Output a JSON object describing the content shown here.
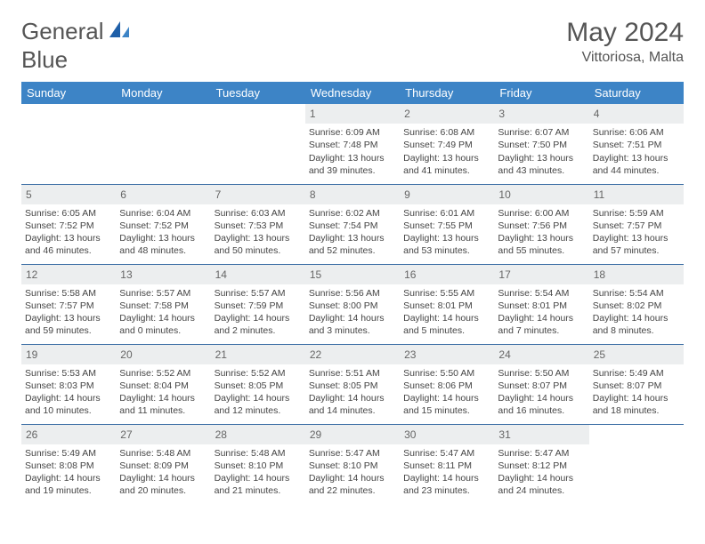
{
  "logo": {
    "text1": "General",
    "text2": "Blue"
  },
  "title": "May 2024",
  "subtitle": "Vittoriosa, Malta",
  "colors": {
    "header_bg": "#3d84c6",
    "header_text": "#ffffff",
    "daynum_bg": "#eceeef",
    "border": "#3d6fa5",
    "body_text": "#444444",
    "title_text": "#555555"
  },
  "weekdays": [
    "Sunday",
    "Monday",
    "Tuesday",
    "Wednesday",
    "Thursday",
    "Friday",
    "Saturday"
  ],
  "weeks": [
    [
      {},
      {},
      {},
      {
        "day": "1",
        "sunrise": "Sunrise: 6:09 AM",
        "sunset": "Sunset: 7:48 PM",
        "daylight": "Daylight: 13 hours and 39 minutes."
      },
      {
        "day": "2",
        "sunrise": "Sunrise: 6:08 AM",
        "sunset": "Sunset: 7:49 PM",
        "daylight": "Daylight: 13 hours and 41 minutes."
      },
      {
        "day": "3",
        "sunrise": "Sunrise: 6:07 AM",
        "sunset": "Sunset: 7:50 PM",
        "daylight": "Daylight: 13 hours and 43 minutes."
      },
      {
        "day": "4",
        "sunrise": "Sunrise: 6:06 AM",
        "sunset": "Sunset: 7:51 PM",
        "daylight": "Daylight: 13 hours and 44 minutes."
      }
    ],
    [
      {
        "day": "5",
        "sunrise": "Sunrise: 6:05 AM",
        "sunset": "Sunset: 7:52 PM",
        "daylight": "Daylight: 13 hours and 46 minutes."
      },
      {
        "day": "6",
        "sunrise": "Sunrise: 6:04 AM",
        "sunset": "Sunset: 7:52 PM",
        "daylight": "Daylight: 13 hours and 48 minutes."
      },
      {
        "day": "7",
        "sunrise": "Sunrise: 6:03 AM",
        "sunset": "Sunset: 7:53 PM",
        "daylight": "Daylight: 13 hours and 50 minutes."
      },
      {
        "day": "8",
        "sunrise": "Sunrise: 6:02 AM",
        "sunset": "Sunset: 7:54 PM",
        "daylight": "Daylight: 13 hours and 52 minutes."
      },
      {
        "day": "9",
        "sunrise": "Sunrise: 6:01 AM",
        "sunset": "Sunset: 7:55 PM",
        "daylight": "Daylight: 13 hours and 53 minutes."
      },
      {
        "day": "10",
        "sunrise": "Sunrise: 6:00 AM",
        "sunset": "Sunset: 7:56 PM",
        "daylight": "Daylight: 13 hours and 55 minutes."
      },
      {
        "day": "11",
        "sunrise": "Sunrise: 5:59 AM",
        "sunset": "Sunset: 7:57 PM",
        "daylight": "Daylight: 13 hours and 57 minutes."
      }
    ],
    [
      {
        "day": "12",
        "sunrise": "Sunrise: 5:58 AM",
        "sunset": "Sunset: 7:57 PM",
        "daylight": "Daylight: 13 hours and 59 minutes."
      },
      {
        "day": "13",
        "sunrise": "Sunrise: 5:57 AM",
        "sunset": "Sunset: 7:58 PM",
        "daylight": "Daylight: 14 hours and 0 minutes."
      },
      {
        "day": "14",
        "sunrise": "Sunrise: 5:57 AM",
        "sunset": "Sunset: 7:59 PM",
        "daylight": "Daylight: 14 hours and 2 minutes."
      },
      {
        "day": "15",
        "sunrise": "Sunrise: 5:56 AM",
        "sunset": "Sunset: 8:00 PM",
        "daylight": "Daylight: 14 hours and 3 minutes."
      },
      {
        "day": "16",
        "sunrise": "Sunrise: 5:55 AM",
        "sunset": "Sunset: 8:01 PM",
        "daylight": "Daylight: 14 hours and 5 minutes."
      },
      {
        "day": "17",
        "sunrise": "Sunrise: 5:54 AM",
        "sunset": "Sunset: 8:01 PM",
        "daylight": "Daylight: 14 hours and 7 minutes."
      },
      {
        "day": "18",
        "sunrise": "Sunrise: 5:54 AM",
        "sunset": "Sunset: 8:02 PM",
        "daylight": "Daylight: 14 hours and 8 minutes."
      }
    ],
    [
      {
        "day": "19",
        "sunrise": "Sunrise: 5:53 AM",
        "sunset": "Sunset: 8:03 PM",
        "daylight": "Daylight: 14 hours and 10 minutes."
      },
      {
        "day": "20",
        "sunrise": "Sunrise: 5:52 AM",
        "sunset": "Sunset: 8:04 PM",
        "daylight": "Daylight: 14 hours and 11 minutes."
      },
      {
        "day": "21",
        "sunrise": "Sunrise: 5:52 AM",
        "sunset": "Sunset: 8:05 PM",
        "daylight": "Daylight: 14 hours and 12 minutes."
      },
      {
        "day": "22",
        "sunrise": "Sunrise: 5:51 AM",
        "sunset": "Sunset: 8:05 PM",
        "daylight": "Daylight: 14 hours and 14 minutes."
      },
      {
        "day": "23",
        "sunrise": "Sunrise: 5:50 AM",
        "sunset": "Sunset: 8:06 PM",
        "daylight": "Daylight: 14 hours and 15 minutes."
      },
      {
        "day": "24",
        "sunrise": "Sunrise: 5:50 AM",
        "sunset": "Sunset: 8:07 PM",
        "daylight": "Daylight: 14 hours and 16 minutes."
      },
      {
        "day": "25",
        "sunrise": "Sunrise: 5:49 AM",
        "sunset": "Sunset: 8:07 PM",
        "daylight": "Daylight: 14 hours and 18 minutes."
      }
    ],
    [
      {
        "day": "26",
        "sunrise": "Sunrise: 5:49 AM",
        "sunset": "Sunset: 8:08 PM",
        "daylight": "Daylight: 14 hours and 19 minutes."
      },
      {
        "day": "27",
        "sunrise": "Sunrise: 5:48 AM",
        "sunset": "Sunset: 8:09 PM",
        "daylight": "Daylight: 14 hours and 20 minutes."
      },
      {
        "day": "28",
        "sunrise": "Sunrise: 5:48 AM",
        "sunset": "Sunset: 8:10 PM",
        "daylight": "Daylight: 14 hours and 21 minutes."
      },
      {
        "day": "29",
        "sunrise": "Sunrise: 5:47 AM",
        "sunset": "Sunset: 8:10 PM",
        "daylight": "Daylight: 14 hours and 22 minutes."
      },
      {
        "day": "30",
        "sunrise": "Sunrise: 5:47 AM",
        "sunset": "Sunset: 8:11 PM",
        "daylight": "Daylight: 14 hours and 23 minutes."
      },
      {
        "day": "31",
        "sunrise": "Sunrise: 5:47 AM",
        "sunset": "Sunset: 8:12 PM",
        "daylight": "Daylight: 14 hours and 24 minutes."
      },
      {}
    ]
  ]
}
